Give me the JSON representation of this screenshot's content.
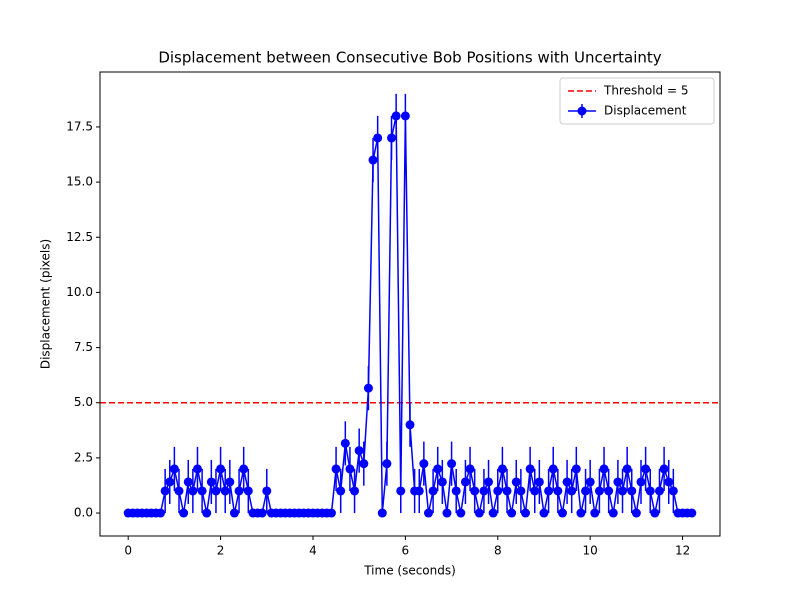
{
  "chart_data": {
    "type": "errorbar-line",
    "title": "Displacement between Consecutive Bob Positions with Uncertainty",
    "x_label": "Time (seconds)",
    "y_label": "Displacement (pixels)",
    "xlim": [
      -0.61,
      12.81
    ],
    "ylim": [
      -1.04,
      19.99
    ],
    "xticks": [
      0,
      2,
      4,
      6,
      8,
      10,
      12
    ],
    "yticks": [
      {
        "value": 0,
        "label": "0.0"
      },
      2.5,
      {
        "value": 5,
        "label": "5.0"
      },
      7.5,
      {
        "value": 10,
        "label": "10.0"
      },
      12.5,
      {
        "value": 15,
        "label": "15.0"
      },
      17.5
    ],
    "legend_position": "upper right",
    "threshold": {
      "name": "Threshold = 5",
      "value": 5,
      "color": "#ff0000"
    },
    "x": [
      0,
      0.1,
      0.2,
      0.3,
      0.4,
      0.5,
      0.6,
      0.7,
      0.8,
      0.9,
      1,
      1.1,
      1.2,
      1.3,
      1.4,
      1.5,
      1.6,
      1.7,
      1.8,
      1.9,
      2,
      2.1,
      2.2,
      2.3,
      2.4,
      2.5,
      2.6,
      2.7,
      2.8,
      2.9,
      3,
      3.1,
      3.2,
      3.3,
      3.4,
      3.5,
      3.6,
      3.7,
      3.8,
      3.9,
      4,
      4.1,
      4.2,
      4.3,
      4.4,
      4.5,
      4.6,
      4.7,
      4.8,
      4.9,
      5,
      5.1,
      5.2,
      5.3,
      5.4,
      5.5,
      5.6,
      5.7,
      5.8,
      5.9,
      6,
      6.1,
      6.2,
      6.3,
      6.4,
      6.5,
      6.6,
      6.7,
      6.8,
      6.9,
      7,
      7.1,
      7.2,
      7.3,
      7.4,
      7.5,
      7.6,
      7.7,
      7.8,
      7.9,
      8,
      8.1,
      8.2,
      8.3,
      8.4,
      8.5,
      8.6,
      8.7,
      8.8,
      8.9,
      9,
      9.1,
      9.2,
      9.3,
      9.4,
      9.5,
      9.6,
      9.7,
      9.8,
      9.9,
      10,
      10.1,
      10.2,
      10.3,
      10.4,
      10.5,
      10.6,
      10.7,
      10.8,
      10.9,
      11,
      11.1,
      11.2,
      11.3,
      11.4,
      11.5,
      11.6,
      11.7,
      11.8,
      11.9,
      12,
      12.1,
      12.2
    ],
    "series": [
      {
        "name": "Displacement",
        "color": "#0000ff",
        "values": [
          0,
          0,
          0,
          0,
          0,
          0,
          0,
          0,
          1,
          1.41,
          2,
          1,
          0,
          1.41,
          1,
          2,
          1,
          0,
          1.41,
          1,
          2,
          1,
          1.41,
          0,
          1,
          2,
          1,
          0,
          0,
          0,
          1,
          0,
          0,
          0,
          0,
          0,
          0,
          0,
          0,
          0,
          0,
          0,
          0,
          0,
          0,
          2,
          1,
          3.16,
          2,
          1,
          2.83,
          2.24,
          5.66,
          16,
          17,
          0,
          2.24,
          17,
          18,
          1,
          18,
          4,
          1,
          1,
          2.24,
          0,
          1,
          2,
          1.41,
          0,
          2.24,
          1,
          0,
          1.41,
          2,
          1,
          0,
          1,
          1.41,
          0,
          1,
          2,
          1,
          0,
          1.41,
          1,
          0,
          2,
          1,
          1.41,
          0,
          1,
          2,
          1,
          0,
          1.41,
          1,
          2,
          0,
          1,
          1.41,
          0,
          1,
          2,
          1,
          0,
          1.41,
          1,
          2,
          1,
          0,
          1.41,
          2,
          1,
          0,
          1,
          2,
          1.41,
          1,
          0,
          0,
          0,
          0
        ],
        "errors": [
          0,
          0,
          0,
          0,
          0,
          0,
          0,
          0,
          1,
          1,
          1,
          1,
          0,
          1,
          1,
          1,
          1,
          0,
          1,
          1,
          1,
          1,
          1,
          0,
          1,
          1,
          1,
          0,
          0,
          0,
          1,
          0,
          0,
          0,
          0,
          0,
          0,
          0,
          0,
          0,
          0,
          0,
          0,
          0,
          0,
          1,
          1,
          1,
          1,
          1,
          1,
          1,
          1,
          1,
          1,
          0,
          1,
          1,
          1,
          1,
          1,
          1,
          1,
          1,
          1,
          0,
          1,
          1,
          1,
          0,
          1,
          1,
          0,
          1,
          1,
          1,
          0,
          1,
          1,
          0,
          1,
          1,
          1,
          0,
          1,
          1,
          0,
          1,
          1,
          1,
          0,
          1,
          1,
          1,
          0,
          1,
          1,
          1,
          0,
          1,
          1,
          0,
          1,
          1,
          1,
          0,
          1,
          1,
          1,
          1,
          0,
          1,
          1,
          1,
          0,
          1,
          1,
          1,
          1,
          0,
          0,
          0,
          0
        ]
      }
    ]
  }
}
